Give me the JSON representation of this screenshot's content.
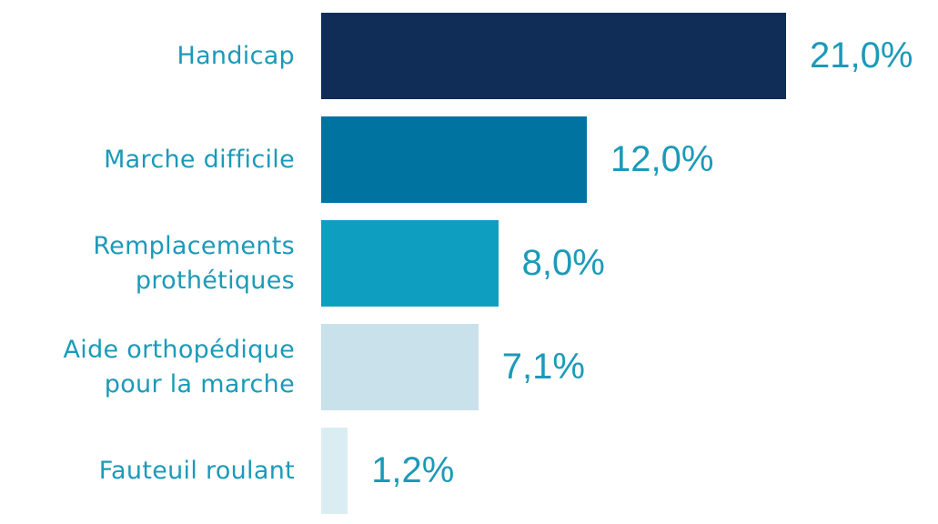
{
  "chart_data": {
    "type": "bar",
    "orientation": "horizontal",
    "categories": [
      "Handicap",
      "Marche difficile",
      "Remplacements prothétiques",
      "Aide orthopédique pour la marche",
      "Fauteuil roulant"
    ],
    "values": [
      21.0,
      12.0,
      8.0,
      7.1,
      1.2
    ],
    "value_labels": [
      "21,0%",
      "12,0%",
      "8,0%",
      "7,1%",
      "1,2%"
    ],
    "colors": [
      "#0f2d57",
      "#0073a0",
      "#0e9fc0",
      "#c9e1ea",
      "#daedf3"
    ]
  }
}
